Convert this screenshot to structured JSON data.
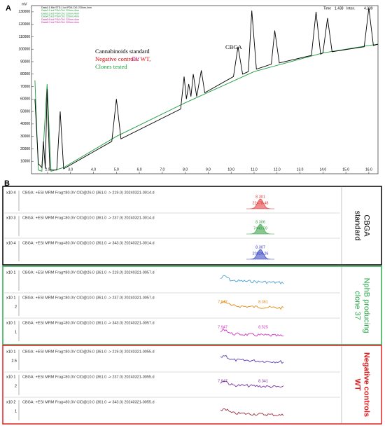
{
  "panel_labels": {
    "a": "A",
    "b": "B"
  },
  "chart_data": [
    {
      "type": "line",
      "y_unit": "mV",
      "status": [
        "Time",
        "1.438",
        "Inten.",
        "4.339"
      ],
      "file_legend": [
        {
          "text": "Data1:1 Mix STD-1.lcd PDA Ch1 220nm,4nm",
          "color": "#000000"
        },
        {
          "text": "Data2:1.lcd PDA Ch1 220nm,4nm",
          "color": "#1a9a3a"
        },
        {
          "text": "Data3:3.lcd PDA Ch1 220nm,4nm",
          "color": "#1a9a3a"
        },
        {
          "text": "Data4:5.lcd PDA Ch1 220nm,4nm",
          "color": "#1a9a3a"
        },
        {
          "text": "Data5:6.lcd PDA Ch1 220nm,4nm",
          "color": "#c0209a"
        },
        {
          "text": "Data6:7.lcd PDA Ch1 220nm,4nm",
          "color": "#c0209a"
        }
      ],
      "annotations": [
        {
          "text": "Cannabinoids standard",
          "color": "#000000"
        },
        {
          "text": "Negative controls: WT,",
          "color": "#e00000"
        },
        {
          "text": "EV",
          "color": "#c0209a"
        },
        {
          "text": "Clones tested",
          "color": "#1a9a3a"
        },
        {
          "text": "CBGA",
          "color": "#000000"
        }
      ],
      "series": [
        {
          "color": "#1a9a3a",
          "x": [
            1.45,
            1.6,
            1.75,
            1.98,
            2.15,
            2.7,
            5,
            8,
            11,
            14,
            16,
            16.4
          ],
          "values": [
            75000,
            3000,
            2000,
            72000,
            2000,
            5000,
            30000,
            57000,
            82000,
            97000,
            103000,
            104000
          ]
        },
        {
          "color": "#000000",
          "x": [
            1.45,
            1.6,
            1.75,
            1.82,
            1.9,
            1.98,
            2.1,
            2.4,
            2.55,
            2.7,
            4.8,
            5.0,
            5.2,
            7.8,
            7.95,
            8.05,
            8.15,
            8.25,
            8.35,
            8.5,
            8.7,
            8.85,
            10.1,
            10.3,
            10.5,
            10.75,
            10.9,
            11.1,
            11.75,
            11.9,
            12.1,
            13.5,
            13.7,
            13.9,
            14.0,
            14.2,
            14.4,
            15.8,
            16.0,
            16.2,
            16.4
          ],
          "values": [
            60000,
            8000,
            5000,
            26000,
            4000,
            68000,
            3000,
            3000,
            50000,
            4000,
            26000,
            60000,
            28000,
            52000,
            78000,
            60000,
            72000,
            62000,
            80000,
            62000,
            83000,
            65000,
            78000,
            102000,
            80000,
            82000,
            131000,
            84000,
            88000,
            115000,
            89000,
            95000,
            130000,
            96000,
            97000,
            125000,
            98000,
            102000,
            133000,
            103000,
            104000
          ]
        }
      ],
      "xlim": [
        1.3,
        16.4
      ],
      "ylim": [
        0,
        135000
      ],
      "xticks": [
        {
          "value": 2,
          "label": "2.0"
        },
        {
          "value": 3,
          "label": "3.0"
        },
        {
          "value": 4,
          "label": "4.0"
        },
        {
          "value": 5,
          "label": "5.0"
        },
        {
          "value": 6,
          "label": "6.0"
        },
        {
          "value": 7,
          "label": "7.0"
        },
        {
          "value": 8,
          "label": "8.0"
        },
        {
          "value": 9,
          "label": "9.0"
        },
        {
          "value": 10,
          "label": "10.0"
        },
        {
          "value": 11,
          "label": "11.0"
        },
        {
          "value": 12,
          "label": "12.0"
        },
        {
          "value": 13,
          "label": "13.0"
        },
        {
          "value": 14,
          "label": "14.0"
        },
        {
          "value": 15,
          "label": "15.0"
        },
        {
          "value": 16,
          "label": "16.0"
        }
      ],
      "yticks": [
        10000,
        20000,
        30000,
        40000,
        50000,
        60000,
        70000,
        80000,
        90000,
        100000,
        110000,
        120000,
        130000
      ]
    }
  ],
  "panel_b": {
    "groups": [
      {
        "label": [
          "CBGA",
          "standard"
        ],
        "border": "#000000",
        "label_color": "#000000",
        "rows": [
          {
            "scale": "x10 4",
            "title": "CBGA: +ESI MRM Frag=80.0V CID@26.0 (361.0 -> 219.0) 20240321-0014.d",
            "color": "#e03030",
            "annotations": [
              "8.301",
              "22478.48"
            ]
          },
          {
            "scale": "x10 3",
            "title": "CBGA: +ESI MRM Frag=80.0V CID@10.0 (361.0 -> 237.0) 20240321-0014.d",
            "color": "#2a9a3a",
            "annotations": [
              "8.306",
              "7440.59"
            ]
          },
          {
            "scale": "x10 4",
            "title": "CBGA: +ESI MRM Frag=80.0V CID@10.0 (361.0 -> 343.0) 20240321-0014.d",
            "color": "#2a3ac0",
            "annotations": [
              "8.307",
              "20824.26"
            ]
          }
        ]
      },
      {
        "label": [
          "NphB producing",
          "clone 37"
        ],
        "border": "#2aaa4a",
        "label_color": "#2aaa4a",
        "rows": [
          {
            "scale": "x10 1",
            "title": "CBGA: +ESI MRM Frag=80.0V CID@26.0 (361.0 -> 219.0) 20240321-0057.d",
            "color": "#4aa0d0",
            "annotations": []
          },
          {
            "scale": "x10 1",
            "tick": "2",
            "title": "CBGA: +ESI MRM Frag=80.0V CID@10.0 (361.0 -> 237.0) 20240321-0057.d",
            "color": "#e08a10",
            "annotations": [
              "7.947",
              "8.361"
            ]
          },
          {
            "scale": "x10 1",
            "tick": "1",
            "title": "CBGA: +ESI MRM Frag=80.0V CID@10.0 (361.0 -> 343.0) 20240321-0057.d",
            "color": "#d030c0",
            "annotations": [
              "7.947",
              "8.525"
            ]
          }
        ]
      },
      {
        "label": [
          "Negative controls",
          "WT"
        ],
        "border": "#e02020",
        "label_color": "#e02020",
        "rows": [
          {
            "scale": "x10 1",
            "tick": "2.5",
            "title": "CBGA: +ESI MRM Frag=80.0V CID@26.0 (361.0 -> 219.0) 20240321-0055.d",
            "color": "#5a3ab0",
            "annotations": []
          },
          {
            "scale": "x10 1",
            "tick": "2",
            "title": "CBGA: +ESI MRM Frag=80.0V CID@10.0 (361.0 -> 237.0) 20240321-0055.d",
            "color": "#7a30a0",
            "annotations": [
              "7.947",
              "8.341"
            ]
          },
          {
            "scale": "x10 2",
            "tick": "1",
            "title": "CBGA: +ESI MRM Frag=80.0V CID@10.0 (361.0 -> 343.0) 20240321-0055.d",
            "color": "#a03040",
            "annotations": []
          }
        ]
      }
    ]
  }
}
